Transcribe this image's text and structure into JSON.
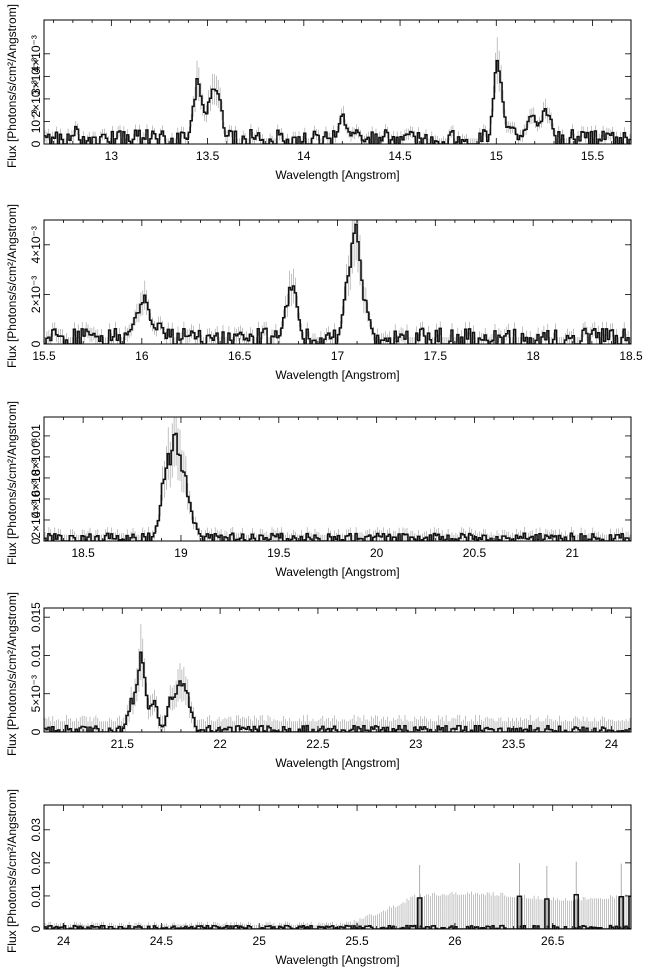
{
  "chart_data": [
    {
      "type": "line",
      "xlabel": "Wavelength [Angstrom]",
      "ylabel": "Flux [Photons/s/cm²/Angstrom]",
      "xlim": [
        12.65,
        15.7
      ],
      "ylim": [
        0,
        0.0055
      ],
      "xticks": [
        13,
        13.5,
        14,
        14.5,
        15,
        15.5
      ],
      "yticks": [
        {
          "v": 0,
          "label": "0"
        },
        {
          "v": 0.001,
          "label": "10⁻³"
        },
        {
          "v": 0.002,
          "label": "2×10⁻³"
        },
        {
          "v": 0.003,
          "label": "3×10⁻³"
        },
        {
          "v": 0.004,
          "label": "4×10⁻³"
        }
      ],
      "lines": [
        {
          "c": 12.82,
          "a": 0.0006,
          "w": 0.01
        },
        {
          "c": 13.45,
          "a": 0.0025,
          "w": 0.025
        },
        {
          "c": 13.52,
          "a": 0.0019,
          "w": 0.02
        },
        {
          "c": 13.56,
          "a": 0.0017,
          "w": 0.02
        },
        {
          "c": 14.2,
          "a": 0.0012,
          "w": 0.02
        },
        {
          "c": 14.27,
          "a": 0.0006,
          "w": 0.02
        },
        {
          "c": 14.55,
          "a": 0.0005,
          "w": 0.02
        },
        {
          "c": 15.01,
          "a": 0.0038,
          "w": 0.022
        },
        {
          "c": 15.08,
          "a": 0.0008,
          "w": 0.02
        },
        {
          "c": 15.18,
          "a": 0.0012,
          "w": 0.025
        },
        {
          "c": 15.26,
          "a": 0.0015,
          "w": 0.025
        }
      ],
      "baseline": 0.0003,
      "noise": 0.45,
      "err_frac": 0.28,
      "err_min": 0.00025
    },
    {
      "type": "line",
      "xlabel": "Wavelength [Angstrom]",
      "ylabel": "Flux [Photons/s/cm²/Angstrom]",
      "xlim": [
        15.5,
        18.5
      ],
      "ylim": [
        0,
        0.005
      ],
      "xticks": [
        15.5,
        16,
        16.5,
        17,
        17.5,
        18,
        18.5
      ],
      "yticks": [
        {
          "v": 0,
          "label": "0"
        },
        {
          "v": 0.002,
          "label": "2×10⁻³"
        },
        {
          "v": 0.004,
          "label": "4×10⁻³"
        }
      ],
      "lines": [
        {
          "c": 15.97,
          "a": 0.0008,
          "w": 0.025
        },
        {
          "c": 16.02,
          "a": 0.0016,
          "w": 0.022
        },
        {
          "c": 16.09,
          "a": 0.0007,
          "w": 0.02
        },
        {
          "c": 16.74,
          "a": 0.0013,
          "w": 0.022
        },
        {
          "c": 16.78,
          "a": 0.0019,
          "w": 0.02
        },
        {
          "c": 17.06,
          "a": 0.0025,
          "w": 0.025
        },
        {
          "c": 17.1,
          "a": 0.0036,
          "w": 0.02
        },
        {
          "c": 17.15,
          "a": 0.0014,
          "w": 0.02
        }
      ],
      "baseline": 0.0003,
      "noise": 0.5,
      "err_frac": 0.3,
      "err_min": 0.00028
    },
    {
      "type": "line",
      "xlabel": "Wavelength [Angstrom]",
      "ylabel": "Flux [Photons/s/cm²/Angstrom]",
      "xlim": [
        18.3,
        21.3
      ],
      "ylim": [
        0,
        0.0118
      ],
      "xticks": [
        18.5,
        19,
        19.5,
        20,
        20.5,
        21
      ],
      "yticks": [
        {
          "v": 0,
          "label": "0"
        },
        {
          "v": 0.002,
          "label": "2×10⁻³"
        },
        {
          "v": 0.004,
          "label": "4×10⁻³"
        },
        {
          "v": 0.006,
          "label": "6×10⁻³"
        },
        {
          "v": 0.008,
          "label": "8×10⁻³"
        },
        {
          "v": 0.01,
          "label": "0.01"
        }
      ],
      "lines": [
        {
          "c": 18.62,
          "a": 0.0006,
          "w": 0.01
        },
        {
          "c": 18.92,
          "a": 0.0055,
          "w": 0.025
        },
        {
          "c": 18.97,
          "a": 0.0082,
          "w": 0.025
        },
        {
          "c": 19.02,
          "a": 0.0048,
          "w": 0.025
        },
        {
          "c": 19.07,
          "a": 0.0011,
          "w": 0.02
        }
      ],
      "baseline": 0.00035,
      "noise": 0.55,
      "err_frac": 0.3,
      "err_min": 0.0006
    },
    {
      "type": "line",
      "xlabel": "Wavelength [Angstrom]",
      "ylabel": "Flux [Photons/s/cm²/Angstrom]",
      "xlim": [
        21.1,
        24.1
      ],
      "ylim": [
        0,
        0.0162
      ],
      "xticks": [
        21.5,
        22,
        22.5,
        23,
        23.5,
        24
      ],
      "yticks": [
        {
          "v": 0,
          "label": "0"
        },
        {
          "v": 0.005,
          "label": "5×10⁻³"
        },
        {
          "v": 0.01,
          "label": "0.01"
        },
        {
          "v": 0.015,
          "label": "0.015"
        }
      ],
      "lines": [
        {
          "c": 21.55,
          "a": 0.004,
          "w": 0.02
        },
        {
          "c": 21.6,
          "a": 0.0095,
          "w": 0.018
        },
        {
          "c": 21.66,
          "a": 0.004,
          "w": 0.02
        },
        {
          "c": 21.75,
          "a": 0.004,
          "w": 0.02
        },
        {
          "c": 21.8,
          "a": 0.0058,
          "w": 0.022
        },
        {
          "c": 21.84,
          "a": 0.003,
          "w": 0.02
        }
      ],
      "baseline": 0.0004,
      "noise": 0.6,
      "err_frac": 0.35,
      "err_min": 0.0014
    },
    {
      "type": "line",
      "xlabel": "Wavelength [Angstrom]",
      "ylabel": "Flux [Photons/s/cm²/Angstrom]",
      "xlim": [
        23.9,
        26.9
      ],
      "ylim": [
        0,
        0.0375
      ],
      "xticks": [
        24,
        24.5,
        25,
        25.5,
        26,
        26.5
      ],
      "yticks": [
        {
          "v": 0,
          "label": "0"
        },
        {
          "v": 0.01,
          "label": "0.01"
        },
        {
          "v": 0.02,
          "label": "0.02"
        },
        {
          "v": 0.03,
          "label": "0.03"
        }
      ],
      "lines": [],
      "spikes": [
        25.82,
        26.33,
        26.47,
        26.62,
        26.85,
        26.9
      ],
      "baseline": 0.0005,
      "noise": 0.6,
      "err_frac": 0.3,
      "err_min": 0.0012,
      "err_ramp": [
        25.4,
        25.8,
        0.0095
      ]
    }
  ],
  "colors": {
    "axes": "#000000",
    "data": "#111111",
    "error": "#9a9a9a"
  }
}
